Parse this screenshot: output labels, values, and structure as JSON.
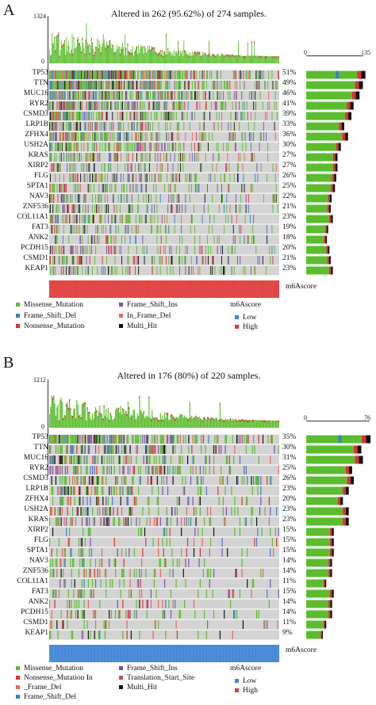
{
  "colors": {
    "Missense_Mutation": "#5bbd2e",
    "Frame_Shift_Del": "#3a7ec6",
    "Nonsense_Mutation": "#e03030",
    "Frame_Shift_Ins": "#7a4fb5",
    "In_Frame_Del": "#ef6060",
    "Multi_Hit": "#111111",
    "Translation_Start_Site": "#d64a4a",
    "Low": "#3f86d6",
    "High": "#e03a3a",
    "background": "#d3d3d3"
  },
  "chart_data": [
    {
      "type": "heatmap",
      "panel_label": "A",
      "title": "Altered in 262 (95.62%) of 274 samples.",
      "top_axis_max": "1324",
      "top_axis_min": "0",
      "side_axis_min": "0",
      "side_axis_max": "135",
      "genes": [
        "TP53",
        "TTN",
        "MUC16",
        "RYR2",
        "CSMD3",
        "LRP1B",
        "ZFHX4",
        "USH2A",
        "KRAS",
        "XIRP2",
        "FLG",
        "SPTA1",
        "NAV3",
        "ZNF536",
        "COL11A1",
        "FAT3",
        "ANK2",
        "PCDH15",
        "CSMD1",
        "KEAP1"
      ],
      "percentages": [
        "51%",
        "49%",
        "46%",
        "41%",
        "39%",
        "33%",
        "36%",
        "30%",
        "27%",
        "27%",
        "26%",
        "25%",
        "22%",
        "21%",
        "23%",
        "19%",
        "18%",
        "20%",
        "21%",
        "23%"
      ],
      "side_counts": [
        140,
        134,
        126,
        112,
        107,
        90,
        99,
        82,
        74,
        74,
        71,
        68,
        60,
        58,
        63,
        52,
        49,
        55,
        58,
        63
      ],
      "sample_count": 274,
      "score_label": "m6Ascore",
      "score_group": "High",
      "legend": [
        "Missense_Mutation",
        "Frame_Shift_Ins",
        "Frame_Shift_Del",
        "In_Frame_Del",
        "Nonsense_Mutation",
        "Multi_Hit"
      ],
      "score_legend_title": "m6Ascore",
      "score_legend": [
        "Low",
        "High"
      ]
    },
    {
      "type": "heatmap",
      "panel_label": "B",
      "title": "Altered in 176 (80%) of 220 samples.",
      "top_axis_max": "1212",
      "top_axis_min": "0",
      "side_axis_min": "0",
      "side_axis_max": "76",
      "genes": [
        "TP53",
        "TTN",
        "MUC16",
        "RYR2",
        "CSMD3",
        "LRP1B",
        "ZFHX4",
        "USH2A",
        "KRAS",
        "XIRP2",
        "FLG",
        "SPTA1",
        "NAV3",
        "ZNF536",
        "COL11A1",
        "FAT3",
        "ANK2",
        "PCDH15",
        "CSMD1",
        "KEAP1"
      ],
      "percentages": [
        "35%",
        "30%",
        "31%",
        "25%",
        "26%",
        "23%",
        "20%",
        "23%",
        "23%",
        "15%",
        "15%",
        "15%",
        "14%",
        "14%",
        "11%",
        "15%",
        "14%",
        "14%",
        "11%",
        "9%"
      ],
      "side_counts": [
        77,
        66,
        68,
        55,
        57,
        51,
        44,
        51,
        51,
        33,
        33,
        33,
        31,
        31,
        24,
        33,
        31,
        31,
        24,
        20
      ],
      "sample_count": 220,
      "score_label": "m6Ascore",
      "score_group": "Low",
      "legend": [
        "Missense_Mutation",
        "Frame_Shift_Ins",
        "Nonsense_Mutation In",
        "Translation_Start_Site",
        "_Frame_Del",
        "Multi_Hit",
        "Frame_Shift_Del"
      ],
      "score_legend_title": "m6Ascore",
      "score_legend": [
        "Low",
        "High"
      ]
    }
  ]
}
